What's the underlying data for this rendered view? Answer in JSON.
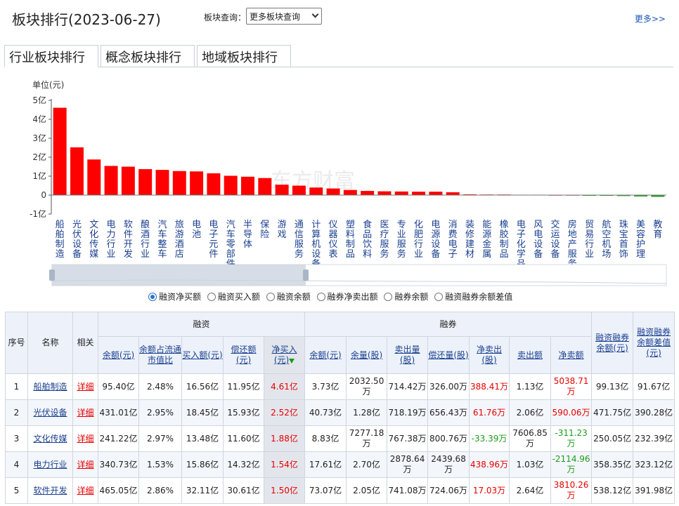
{
  "header": {
    "title": "板块排行(2023-06-27)",
    "query_label": "板块查询：",
    "query_select_value": "更多板块查询",
    "more_link": "更多>>"
  },
  "tabs": [
    {
      "label": "行业板块排行",
      "active": true
    },
    {
      "label": "概念板块排行",
      "active": false
    },
    {
      "label": "地域板块排行",
      "active": false
    }
  ],
  "chart_data": {
    "type": "bar",
    "ylabel": "单位(元)",
    "y_ticks": [
      "5亿",
      "4亿",
      "3亿",
      "2亿",
      "1亿",
      "0",
      "-1亿"
    ],
    "y_tick_values": [
      5,
      4,
      3,
      2,
      1,
      0,
      -1
    ],
    "ylim": [
      -1,
      5
    ],
    "unit": "亿",
    "categories": [
      "船舶制造",
      "光伏设备",
      "文化传媒",
      "电力行业",
      "软件开发",
      "酿酒行业",
      "汽车整车",
      "旅游酒店",
      "电池",
      "电子元件",
      "汽车零部件",
      "半导体",
      "保险",
      "游戏",
      "通信服务",
      "计算机设备",
      "仪器仪表",
      "塑料制品",
      "食品饮料",
      "医疗服务",
      "专业服务",
      "化肥行业",
      "电源设备",
      "消费电子",
      "装修建材",
      "能源金属",
      "橡胶制品",
      "电子化学品",
      "风电设备",
      "交运设备",
      "房地产服务",
      "贸易行业",
      "航空机场",
      "珠宝首饰",
      "美容护理",
      "教育"
    ],
    "values": [
      4.61,
      2.52,
      1.88,
      1.54,
      1.5,
      1.37,
      1.33,
      1.27,
      1.25,
      1.15,
      1.02,
      0.97,
      0.9,
      0.55,
      0.5,
      0.4,
      0.35,
      0.27,
      0.22,
      0.2,
      0.19,
      0.18,
      0.18,
      0.15,
      0.04,
      0.03,
      0.03,
      0.02,
      0.02,
      0.01,
      0.01,
      -0.01,
      -0.03,
      -0.05,
      -0.07,
      -0.09
    ],
    "bar_color": "#ff0000",
    "grid": false,
    "watermark": "东方财富"
  },
  "radio_options": [
    {
      "label": "融资净买额",
      "selected": true
    },
    {
      "label": "融资买入额",
      "selected": false
    },
    {
      "label": "融资余额",
      "selected": false
    },
    {
      "label": "融券净卖出额",
      "selected": false
    },
    {
      "label": "融券余额",
      "selected": false
    },
    {
      "label": "融资融券余额差值",
      "selected": false
    }
  ],
  "table": {
    "h_seq": "序号",
    "h_name": "名称",
    "h_related": "相关",
    "h_margin_group": "融资",
    "h_short_group": "融券",
    "h_total": "融资融券余额(元)",
    "h_diff": "融资融券余额差值(元)",
    "margin_cols": [
      "余额(元)",
      "余额占流通市值比",
      "买入额(元)",
      "偿还额(元)",
      "净买入(元)"
    ],
    "short_cols": [
      "余额(元)",
      "余量(股)",
      "卖出量(股)",
      "偿还量(股)",
      "净卖出(股)",
      "卖出额",
      "净卖额"
    ],
    "rows": [
      {
        "seq": "1",
        "name": "船舶制造",
        "detail": "详细",
        "m_bal": "95.40亿",
        "m_ratio": "2.48%",
        "m_buy": "16.56亿",
        "m_repay": "11.95亿",
        "m_net": "4.61亿",
        "s_bal": "3.73亿",
        "s_qty": "2032.50万",
        "s_sell_qty": "714.42万",
        "s_repay_qty": "326.00万",
        "s_net_qty": "388.41万",
        "s_sell_amt": "1.13亿",
        "s_net_amt": "5038.71万",
        "total": "99.13亿",
        "diff": "91.67亿",
        "net_qty_color": "red",
        "net_amt_color": "red"
      },
      {
        "seq": "2",
        "name": "光伏设备",
        "detail": "详细",
        "m_bal": "431.01亿",
        "m_ratio": "2.95%",
        "m_buy": "18.45亿",
        "m_repay": "15.93亿",
        "m_net": "2.52亿",
        "s_bal": "40.73亿",
        "s_qty": "1.28亿",
        "s_sell_qty": "718.19万",
        "s_repay_qty": "656.43万",
        "s_net_qty": "61.76万",
        "s_sell_amt": "2.06亿",
        "s_net_amt": "590.06万",
        "total": "471.75亿",
        "diff": "390.28亿",
        "net_qty_color": "red",
        "net_amt_color": "red"
      },
      {
        "seq": "3",
        "name": "文化传媒",
        "detail": "详细",
        "m_bal": "241.22亿",
        "m_ratio": "2.97%",
        "m_buy": "13.48亿",
        "m_repay": "11.60亿",
        "m_net": "1.88亿",
        "s_bal": "8.83亿",
        "s_qty": "7277.18万",
        "s_sell_qty": "767.38万",
        "s_repay_qty": "800.76万",
        "s_net_qty": "-33.39万",
        "s_sell_amt": "7606.85万",
        "s_net_amt": "-311.23万",
        "total": "250.05亿",
        "diff": "232.39亿",
        "net_qty_color": "green",
        "net_amt_color": "green"
      },
      {
        "seq": "4",
        "name": "电力行业",
        "detail": "详细",
        "m_bal": "340.73亿",
        "m_ratio": "1.53%",
        "m_buy": "15.86亿",
        "m_repay": "14.32亿",
        "m_net": "1.54亿",
        "s_bal": "17.61亿",
        "s_qty": "2.70亿",
        "s_sell_qty": "2878.64万",
        "s_repay_qty": "2439.68万",
        "s_net_qty": "438.96万",
        "s_sell_amt": "1.03亿",
        "s_net_amt": "-2114.96万",
        "total": "358.35亿",
        "diff": "323.12亿",
        "net_qty_color": "red",
        "net_amt_color": "green"
      },
      {
        "seq": "5",
        "name": "软件开发",
        "detail": "详细",
        "m_bal": "465.05亿",
        "m_ratio": "2.86%",
        "m_buy": "32.11亿",
        "m_repay": "30.61亿",
        "m_net": "1.50亿",
        "s_bal": "73.07亿",
        "s_qty": "2.05亿",
        "s_sell_qty": "741.08万",
        "s_repay_qty": "724.06万",
        "s_net_qty": "17.03万",
        "s_sell_amt": "2.64亿",
        "s_net_amt": "3810.26万",
        "total": "538.12亿",
        "diff": "391.98亿",
        "net_qty_color": "red",
        "net_amt_color": "red"
      }
    ]
  },
  "colors": {
    "accent": "#2b6ed6",
    "link": "#1a3f8f",
    "up": "#e60000",
    "down": "#1b9c1b",
    "header_bg": "#edf2fa"
  }
}
